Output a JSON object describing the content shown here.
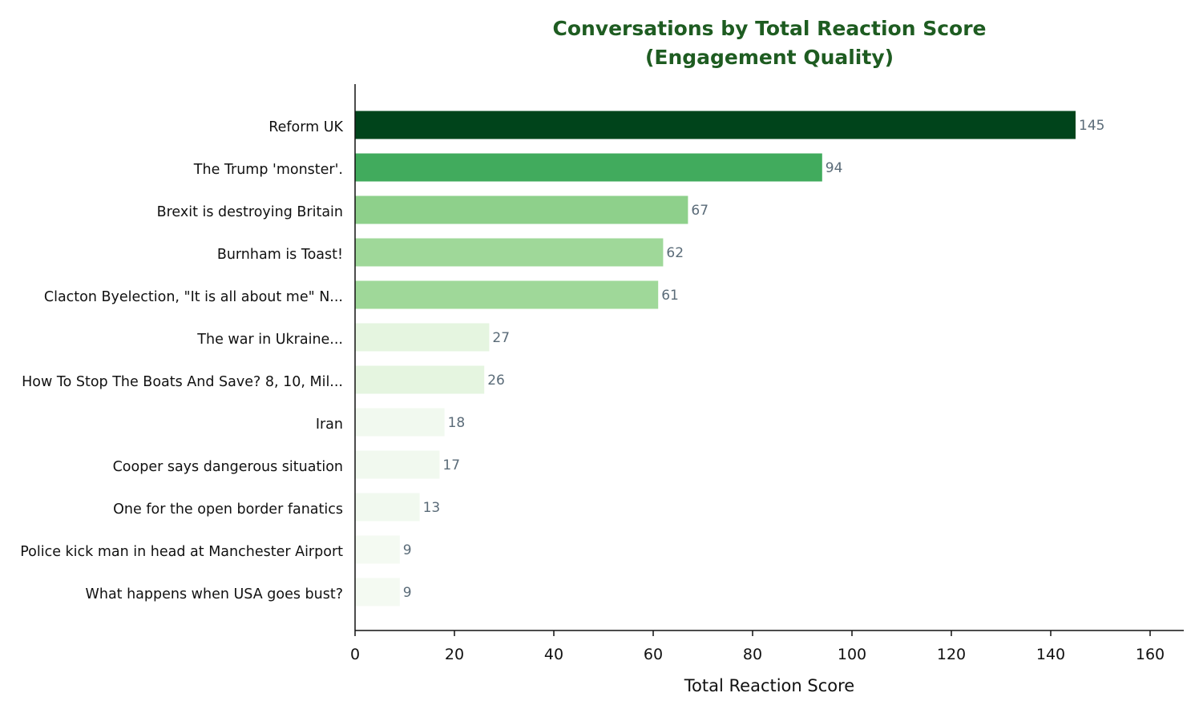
{
  "chart_data": {
    "type": "bar",
    "orientation": "horizontal",
    "title": "Conversations by Total Reaction Score",
    "subtitle": "(Engagement Quality)",
    "xlabel": "Total Reaction Score",
    "ylabel": "",
    "xlim": [
      0,
      167
    ],
    "xticks": [
      0,
      20,
      40,
      60,
      80,
      100,
      120,
      140,
      160
    ],
    "grid": false,
    "legend": "none",
    "categories": [
      "Reform UK",
      "The Trump 'monster'.",
      "Brexit is destroying Britain",
      "Burnham is Toast!",
      "Clacton Byelection, \"It is all about me\" N...",
      "The war in Ukraine...",
      "How To Stop The Boats And Save? 8, 10, Mil...",
      "Iran",
      "Cooper says dangerous situation",
      "One for the open border fanatics",
      "Police kick man in head at Manchester Airport",
      "What happens when USA goes bust?"
    ],
    "values": [
      145,
      94,
      67,
      62,
      61,
      27,
      26,
      18,
      17,
      13,
      9,
      9
    ],
    "colors": {
      "title": "#1e5c21",
      "value_label": "#5a6b78",
      "axis": "#111111",
      "bar_scale": [
        "#00441b",
        "#41ab5d",
        "#8ed08b",
        "#9fd899",
        "#e5f5e0",
        "#f1f9ef",
        "#f4faf2"
      ]
    }
  }
}
